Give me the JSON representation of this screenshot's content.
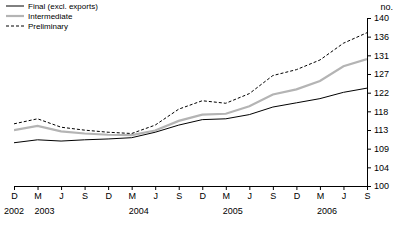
{
  "chart_data": {
    "type": "line",
    "y_label": "no.",
    "categories": [
      "D",
      "M",
      "J",
      "S",
      "D",
      "M",
      "J",
      "S",
      "D",
      "M",
      "J",
      "S",
      "D",
      "M",
      "J",
      "S"
    ],
    "years": [
      "2002",
      "2003",
      null,
      null,
      null,
      "2004",
      null,
      null,
      null,
      "2005",
      null,
      null,
      null,
      "2006",
      null,
      null
    ],
    "series": [
      {
        "name": "Final (excl. exports)",
        "color": "#000000",
        "line_style": "solid",
        "values": [
          110.3,
          111.0,
          110.7,
          111.0,
          111.2,
          111.5,
          112.8,
          114.5,
          115.8,
          116.0,
          117.0,
          118.8,
          119.8,
          120.8,
          122.3,
          123.3
        ]
      },
      {
        "name": "Intermediate",
        "color": "#b4b4b4",
        "line_style": "solid",
        "values": [
          113.3,
          114.3,
          113.0,
          112.5,
          112.2,
          112.1,
          113.2,
          115.5,
          117.0,
          117.2,
          119.0,
          121.8,
          123.0,
          125.0,
          128.5,
          130.2
        ]
      },
      {
        "name": "Preliminary",
        "color": "#000000",
        "line_style": "dashed",
        "values": [
          114.8,
          116.0,
          114.0,
          113.3,
          112.8,
          112.5,
          114.5,
          118.3,
          120.3,
          119.7,
          122.0,
          126.3,
          127.7,
          130.0,
          134.0,
          136.5
        ]
      }
    ],
    "ylim": [
      100,
      140
    ],
    "yticks": [
      100,
      {
        "value": 104.44,
        "label": "104"
      },
      {
        "value": 108.89,
        "label": "109"
      },
      {
        "value": 113.33,
        "label": "113"
      },
      {
        "value": 117.78,
        "label": "118"
      },
      {
        "value": 122.22,
        "label": "122"
      },
      {
        "value": 126.67,
        "label": "127"
      },
      {
        "value": 131.11,
        "label": "131"
      },
      {
        "value": 135.56,
        "label": "136"
      },
      140
    ],
    "legend": "top-left",
    "grid": false
  }
}
